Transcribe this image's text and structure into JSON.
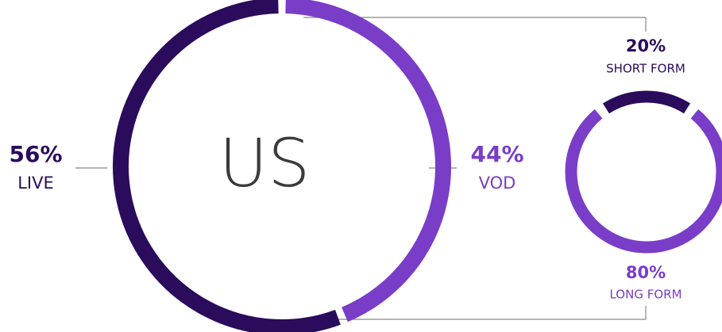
{
  "chart_data": [
    {
      "type": "donut",
      "title": "US",
      "categories": [
        "LIVE",
        "VOD"
      ],
      "values": [
        56,
        44
      ],
      "value_labels": [
        "56%",
        "44%"
      ],
      "colors": [
        "#2b0b5c",
        "#7a3dc8"
      ]
    },
    {
      "type": "donut",
      "categories": [
        "SHORT FORM",
        "LONG FORM"
      ],
      "values": [
        20,
        80
      ],
      "value_labels": [
        "20%",
        "80%"
      ],
      "colors": [
        "#2b0b5c",
        "#7a3dc8"
      ]
    }
  ]
}
